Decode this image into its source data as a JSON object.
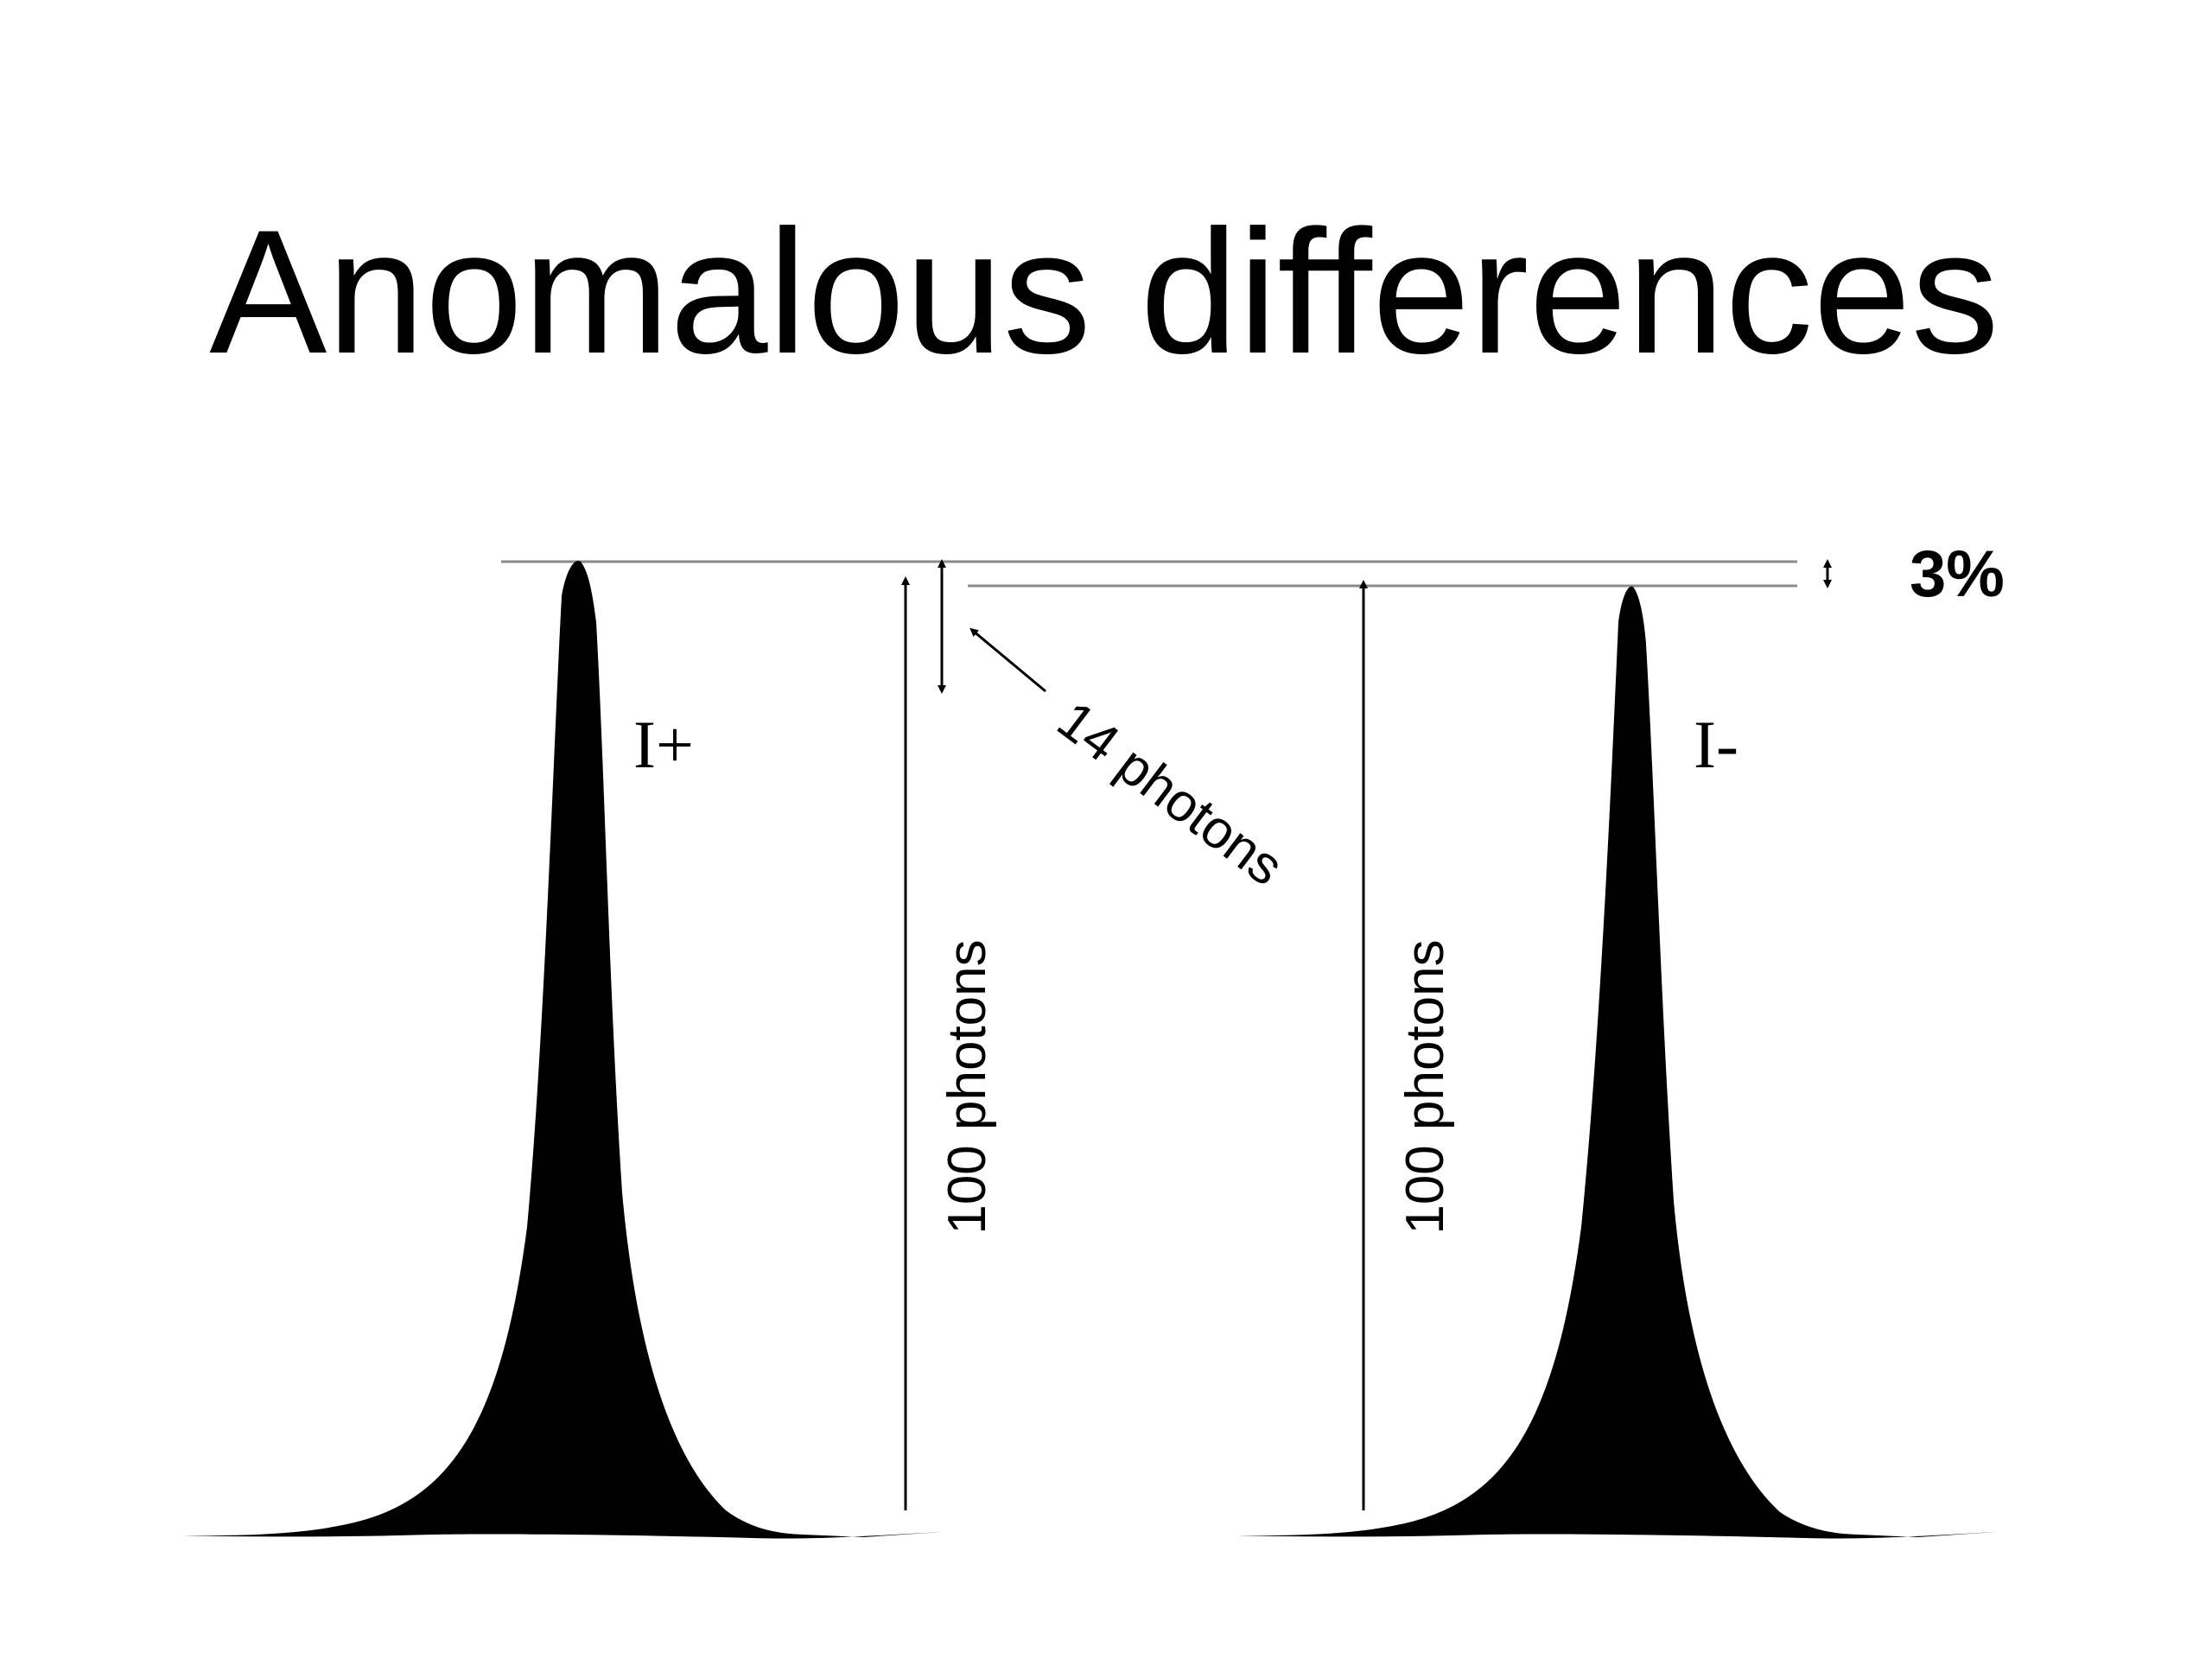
{
  "slide": {
    "title": "Anomalous differences"
  },
  "peaks": [
    {
      "label": "I+"
    },
    {
      "label": "I-"
    }
  ],
  "annotations": {
    "height_left": "100 photons",
    "height_right": "100 photons",
    "difference": "14 photons",
    "percent": "3%"
  },
  "colors": {
    "ink": "#000000",
    "guide_line": "#8a8a8a",
    "background": "#ffffff"
  }
}
